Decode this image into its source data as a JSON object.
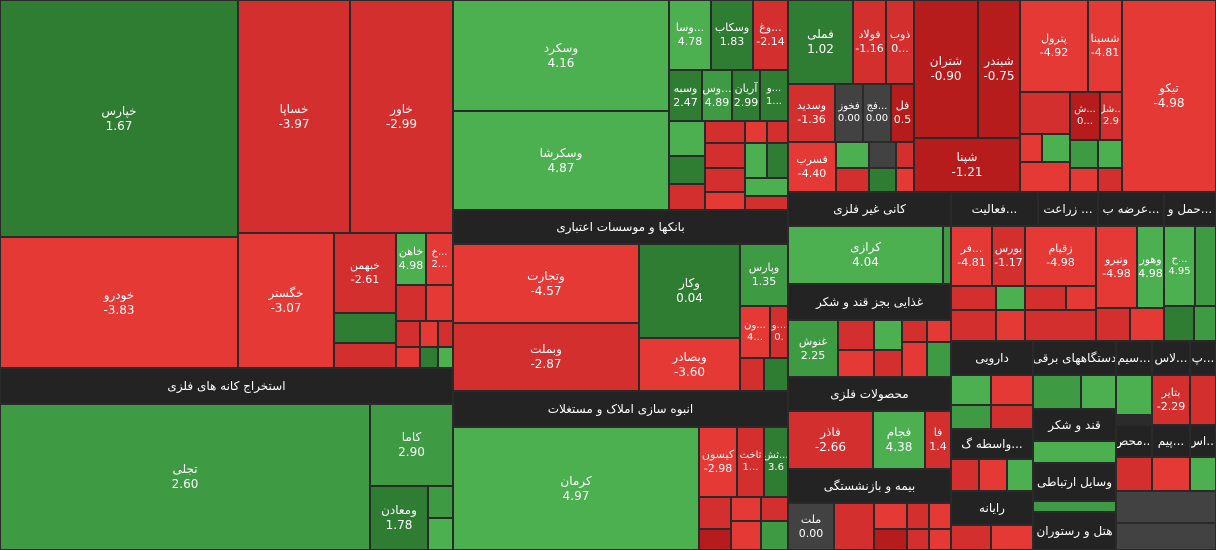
{
  "colors": {
    "dark_green": "#2e7d32",
    "mid_green": "#3f9a44",
    "light_green": "#4caf50",
    "dark_red": "#b71c1c",
    "mid_red": "#d32f2f",
    "light_red": "#e53935",
    "neutral": "#424242",
    "header_bg": "#232323"
  },
  "sectors": {
    "metal_ores": "استخراج کانه های فلزی",
    "banks": "بانکها و موسسات اعتباری",
    "real_estate": "انبوه سازی املاک و مستغلات",
    "nonmetal": "کانی غیر فلزی",
    "food": "غذایی بجز قند و شکر",
    "metal_products": "محصولات فلزی",
    "insurance": "بیمه و بازنشستگی",
    "misc1": "فعالیت...",
    "agriculture": "زراعت ...",
    "supply": "عرضه ب...",
    "transport": "حمل و...",
    "pharma": "دارویی",
    "electrical": "دستگاههای برقی",
    "cement": "سیم...",
    "leather": "لاس...",
    "sugar": "قند و شکر",
    "intermediaries": "واسطه گ...",
    "telecom": "وسایل ارتباطی",
    "computers": "رایانه",
    "hotels": "هتل و رستوران",
    "products": "محص...",
    "seal": "پیم...",
    "crop": "اس...",
    "pe": "پ..."
  },
  "tiles": {
    "khepars": {
      "name": "خپارس",
      "change": "1.67"
    },
    "khesapa": {
      "name": "خساپا",
      "change": "-3.97"
    },
    "khavar": {
      "name": "خاور",
      "change": "-2.99"
    },
    "khodro": {
      "name": "خودرو",
      "change": "-3.83"
    },
    "khgostar": {
      "name": "خگستر",
      "change": "-3.07"
    },
    "khbahman": {
      "name": "خبهمن",
      "change": "-2.61"
    },
    "khavan": {
      "name": "خاهن",
      "change": "4.98"
    },
    "kh2": {
      "name": "خ...",
      "change": "2..."
    },
    "tajli": {
      "name": "تجلی",
      "change": "2.60"
    },
    "kama": {
      "name": "کاما",
      "change": "2.90"
    },
    "vamaaden": {
      "name": "ومعادن",
      "change": "1.78"
    },
    "vaskard": {
      "name": "وسکرد",
      "change": "4.16"
    },
    "vaskrasha": {
      "name": "وسکرشا",
      "change": "4.87"
    },
    "vasa": {
      "name": "وسا...",
      "change": "4.78"
    },
    "vaskab": {
      "name": "وسکاب",
      "change": "1.83"
    },
    "vag": {
      "name": "وغ...",
      "change": "-2.14"
    },
    "vasbeh": {
      "name": "وسبه",
      "change": "2.47"
    },
    "vas2": {
      "name": "وس...",
      "change": "4.89"
    },
    "aryan": {
      "name": "آریان",
      "change": "2.99"
    },
    "v3": {
      "name": "و...",
      "change": "1..."
    },
    "vtejarat": {
      "name": "وتجارت",
      "change": "-4.57"
    },
    "vkar": {
      "name": "وکار",
      "change": "0.04"
    },
    "vparas": {
      "name": "وپارس",
      "change": "1.35"
    },
    "vmellat": {
      "name": "وبملت",
      "change": "-2.87"
    },
    "vsaderat": {
      "name": "وبصادر",
      "change": "-3.60"
    },
    "von": {
      "name": "ون...",
      "change": "4..."
    },
    "v0": {
      "name": "و...",
      "change": "0."
    },
    "kerman": {
      "name": "کرمان",
      "change": "4.97"
    },
    "kisun": {
      "name": "کیسون",
      "change": "-2.98"
    },
    "sakht": {
      "name": "ثاخت",
      "change": "1..."
    },
    "sesh": {
      "name": "ثش...",
      "change": "3.6"
    },
    "fameli": {
      "name": "فملی",
      "change": "1.02"
    },
    "fuolad": {
      "name": "فولاد",
      "change": "-1.16"
    },
    "zob": {
      "name": "ذوب",
      "change": "0..."
    },
    "shetran": {
      "name": "شتران",
      "change": "-0.90"
    },
    "shbandar": {
      "name": "شبندر",
      "change": "-0.75"
    },
    "petrol": {
      "name": "پترول",
      "change": "-4.92"
    },
    "shasina": {
      "name": "شسینا",
      "change": "-4.81"
    },
    "tiko": {
      "name": "تیکو",
      "change": "-4.98"
    },
    "vasdid": {
      "name": "وسدید",
      "change": "-1.36"
    },
    "fakhuz": {
      "name": "فخوز",
      "change": "0.00"
    },
    "fakh": {
      "name": "فج...",
      "change": "0.00"
    },
    "fel": {
      "name": "فل",
      "change": "0.5"
    },
    "shpina": {
      "name": "شپنا",
      "change": "-1.21"
    },
    "sh2": {
      "name": "ش...",
      "change": "0..."
    },
    "shol": {
      "name": "شل...",
      "change": "2.9"
    },
    "fasreb": {
      "name": "فسرب",
      "change": "-4.40"
    },
    "karazi": {
      "name": "کرازی",
      "change": "4.04"
    },
    "ghanush": {
      "name": "غنوش",
      "change": "2.25"
    },
    "fader": {
      "name": "فاذر",
      "change": "-2.66"
    },
    "fajam": {
      "name": "فجام",
      "change": "4.38"
    },
    "fa": {
      "name": "فا",
      "change": "1.4"
    },
    "melat": {
      "name": "ملت",
      "change": "0.00"
    },
    "far": {
      "name": "فر...",
      "change": "-4.81"
    },
    "bourse": {
      "name": "بورس",
      "change": "-1.17"
    },
    "zaqiam": {
      "name": "زقیام",
      "change": "-4.98"
    },
    "vniro": {
      "name": "ونیرو",
      "change": "-4.98"
    },
    "vhor": {
      "name": "وهور",
      "change": "4.98"
    },
    "h4": {
      "name": "ح...",
      "change": "4.95"
    },
    "batir": {
      "name": "بتایر",
      "change": "-2.29"
    }
  }
}
